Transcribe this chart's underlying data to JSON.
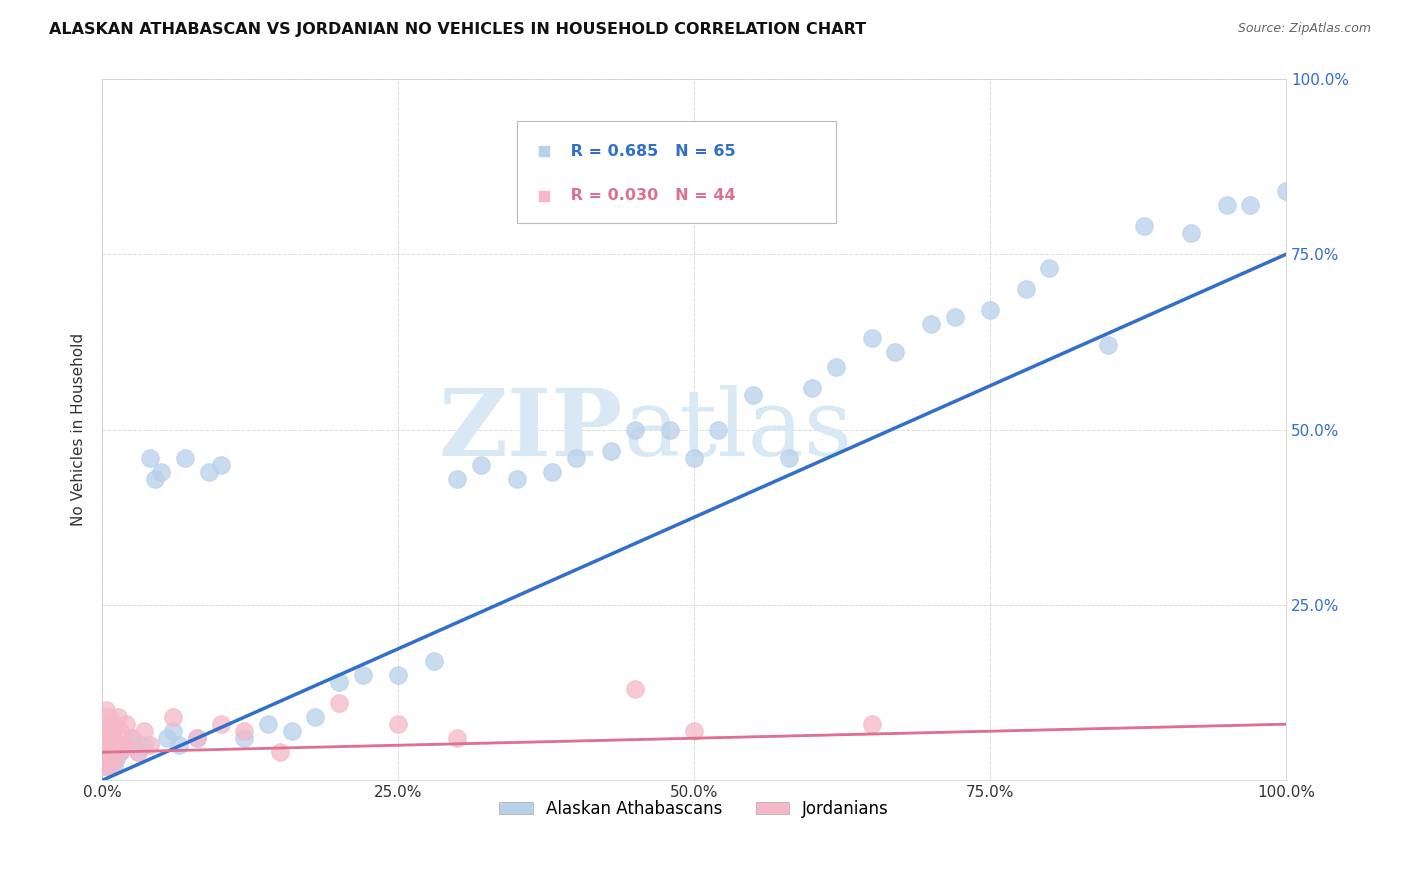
{
  "title": "ALASKAN ATHABASCAN VS JORDANIAN NO VEHICLES IN HOUSEHOLD CORRELATION CHART",
  "source": "Source: ZipAtlas.com",
  "ylabel": "No Vehicles in Household",
  "legend_labels": [
    "Alaskan Athabascans",
    "Jordanians"
  ],
  "r_blue": 0.685,
  "n_blue": 65,
  "r_pink": 0.03,
  "n_pink": 44,
  "blue_color": "#b8d0ea",
  "pink_color": "#f5b8c8",
  "blue_line_color": "#3070c8",
  "pink_line_color": "#e07090",
  "watermark_color": "#d8e8f5",
  "background_color": "#ffffff",
  "grid_color": "#cccccc",
  "blue_x": [
    0.003,
    0.003,
    0.004,
    0.004,
    0.005,
    0.005,
    0.006,
    0.006,
    0.007,
    0.007,
    0.008,
    0.009,
    0.01,
    0.01,
    0.012,
    0.015,
    0.02,
    0.025,
    0.03,
    0.035,
    0.04,
    0.045,
    0.05,
    0.055,
    0.06,
    0.065,
    0.07,
    0.08,
    0.09,
    0.1,
    0.12,
    0.14,
    0.16,
    0.18,
    0.2,
    0.22,
    0.25,
    0.28,
    0.3,
    0.32,
    0.35,
    0.38,
    0.4,
    0.43,
    0.45,
    0.48,
    0.5,
    0.52,
    0.55,
    0.58,
    0.6,
    0.62,
    0.65,
    0.67,
    0.7,
    0.72,
    0.75,
    0.78,
    0.8,
    0.85,
    0.88,
    0.92,
    0.95,
    0.97,
    1.0
  ],
  "blue_y": [
    0.02,
    0.04,
    0.03,
    0.05,
    0.02,
    0.04,
    0.03,
    0.06,
    0.02,
    0.04,
    0.03,
    0.05,
    0.02,
    0.04,
    0.03,
    0.04,
    0.05,
    0.06,
    0.04,
    0.05,
    0.46,
    0.43,
    0.44,
    0.06,
    0.07,
    0.05,
    0.46,
    0.06,
    0.44,
    0.45,
    0.06,
    0.08,
    0.07,
    0.09,
    0.14,
    0.15,
    0.15,
    0.17,
    0.43,
    0.45,
    0.43,
    0.44,
    0.46,
    0.47,
    0.5,
    0.5,
    0.46,
    0.5,
    0.55,
    0.46,
    0.56,
    0.59,
    0.63,
    0.61,
    0.65,
    0.66,
    0.67,
    0.7,
    0.73,
    0.62,
    0.79,
    0.78,
    0.82,
    0.82,
    0.84
  ],
  "pink_x": [
    0.001,
    0.001,
    0.002,
    0.002,
    0.002,
    0.003,
    0.003,
    0.003,
    0.004,
    0.004,
    0.005,
    0.005,
    0.005,
    0.006,
    0.006,
    0.007,
    0.007,
    0.008,
    0.008,
    0.009,
    0.009,
    0.01,
    0.01,
    0.012,
    0.013,
    0.015,
    0.015,
    0.018,
    0.02,
    0.025,
    0.03,
    0.035,
    0.04,
    0.06,
    0.08,
    0.1,
    0.12,
    0.15,
    0.2,
    0.25,
    0.3,
    0.45,
    0.5,
    0.65
  ],
  "pink_y": [
    0.02,
    0.05,
    0.03,
    0.06,
    0.08,
    0.04,
    0.07,
    0.1,
    0.05,
    0.08,
    0.03,
    0.06,
    0.09,
    0.04,
    0.07,
    0.02,
    0.05,
    0.03,
    0.06,
    0.04,
    0.07,
    0.03,
    0.08,
    0.05,
    0.09,
    0.04,
    0.07,
    0.05,
    0.08,
    0.06,
    0.04,
    0.07,
    0.05,
    0.09,
    0.06,
    0.08,
    0.07,
    0.04,
    0.11,
    0.08,
    0.06,
    0.13,
    0.07,
    0.08
  ]
}
